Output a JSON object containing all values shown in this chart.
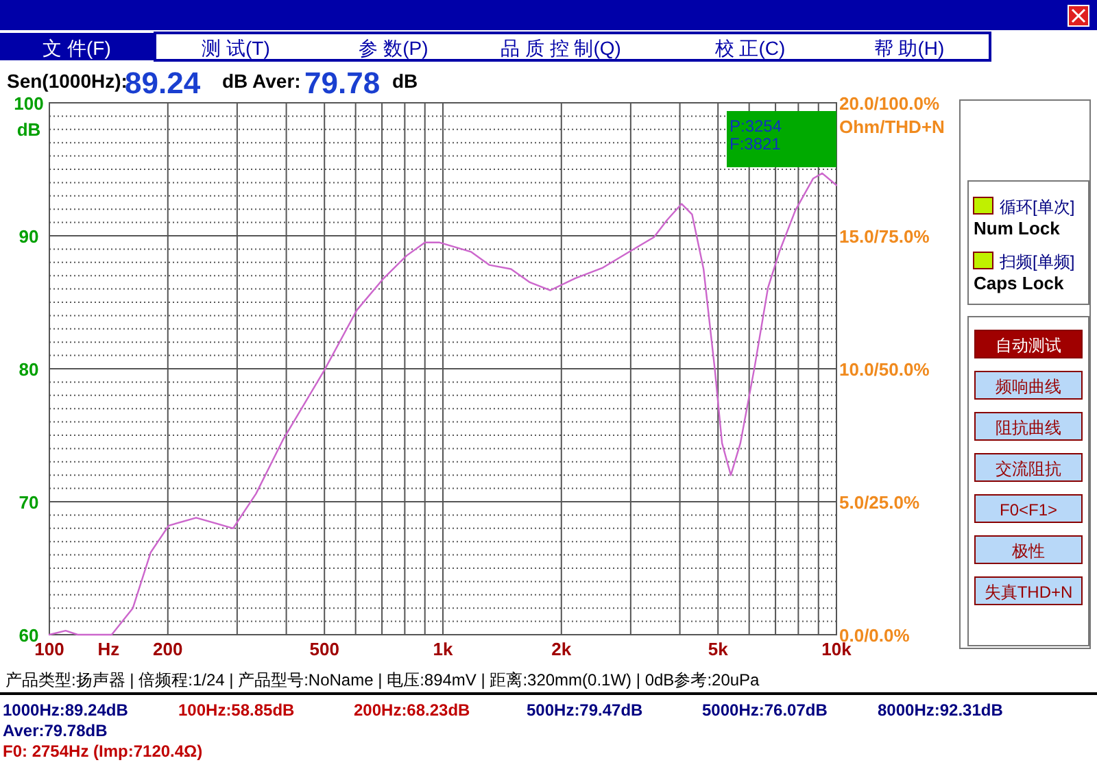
{
  "chart_data": {
    "type": "line",
    "xlabel": "Hz",
    "ylabel": "dB",
    "y2label": "Ohm/THD+N",
    "log": "x",
    "grid": true,
    "xlim": [
      100,
      10000
    ],
    "ylim": [
      60,
      100
    ],
    "xticks": [
      100,
      200,
      500,
      {
        "value": 1000,
        "label": "1k"
      },
      {
        "value": 2000,
        "label": "2k"
      },
      {
        "value": 5000,
        "label": "5k"
      },
      {
        "value": 10000,
        "label": "10k"
      }
    ],
    "yticks": [
      60,
      70,
      80,
      90,
      100
    ],
    "series": [
      {
        "color": "#cc66cc",
        "x": [
          100,
          110,
          118,
          144,
          163,
          181,
          201,
          236,
          293,
          335,
          393,
          500,
          604,
          707,
          808,
          900,
          978,
          1178,
          1313,
          1489,
          1663,
          1875,
          2167,
          2549,
          2977,
          3438,
          3715,
          4040,
          4297,
          4595,
          4910,
          5120,
          5390,
          5700,
          6200,
          6700,
          7160,
          7860,
          8720,
          9200,
          10000
        ],
        "values": [
          60.0,
          60.3,
          60.0,
          60.0,
          62.0,
          66.2,
          68.2,
          68.8,
          68.0,
          70.6,
          74.7,
          79.9,
          84.4,
          86.8,
          88.5,
          89.5,
          89.5,
          88.8,
          87.8,
          87.5,
          86.5,
          85.9,
          86.8,
          87.6,
          88.8,
          89.9,
          91.2,
          92.4,
          91.6,
          87.5,
          79.9,
          74.4,
          72.0,
          74.4,
          80.2,
          86.1,
          88.8,
          91.9,
          94.3,
          94.7,
          93.8
        ]
      }
    ],
    "annotations": [
      "文 件(F)",
      "测 试(T)",
      "参 数(P)",
      "品 质 控 制(Q)",
      "校 正(C)",
      "帮 助(H)",
      "Sen(1000Hz):",
      "89.24",
      "dB Aver:",
      "79.78",
      "dB",
      "P:3254",
      "F:3821",
      "循环[单次]",
      "Num Lock",
      "扫频[单频]",
      "Caps Lock",
      "自动测试",
      "频响曲线",
      "阻抗曲线",
      "交流阻抗",
      "F0<F1>",
      "极性",
      "失真THD+N",
      "产品类型:扬声器 | 倍频程:1/24 | 产品型号:NoName | 电压:894mV | 距离:320mm(0.1W) | 0dB参考:20uPa",
      "1000Hz:89.24dB",
      "100Hz:58.85dB",
      "200Hz:68.23dB",
      "500Hz:79.47dB",
      "5000Hz:76.07dB",
      "8000Hz:92.31dB",
      "Aver:79.78dB",
      "F0:  2754Hz (Imp:7120.4Ω)",
      "0.0/0.0%",
      "5.0/25.0%",
      "10.0/50.0%",
      "15.0/75.0%",
      "20.0/100.0%"
    ]
  }
}
